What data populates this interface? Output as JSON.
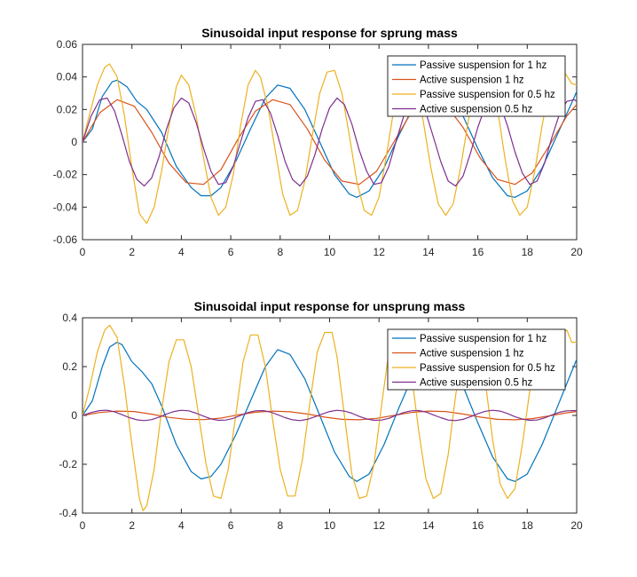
{
  "chart_data": [
    {
      "type": "line",
      "title": "Sinusoidal input response for sprung mass",
      "xlabel": "",
      "ylabel": "",
      "xlim": [
        0,
        20
      ],
      "ylim": [
        -0.06,
        0.06
      ],
      "xticks": [
        0,
        2,
        4,
        6,
        8,
        10,
        12,
        14,
        16,
        18,
        20
      ],
      "yticks": [
        -0.06,
        -0.04,
        -0.02,
        0,
        0.02,
        0.04,
        0.06
      ],
      "ytick_labels": [
        "-0.06",
        "-0.04",
        "-0.02",
        "0",
        "0.02",
        "0.04",
        "0.06"
      ],
      "grid": false,
      "legend_position": "top-right",
      "series": [
        {
          "name": "Passive suspension for 1 hz",
          "color": "#0072BD",
          "x": [
            0,
            0.4,
            0.8,
            1.2,
            1.4,
            1.8,
            2.2,
            2.6,
            3.2,
            3.8,
            4.4,
            4.8,
            5.2,
            5.6,
            6.2,
            6.8,
            7.4,
            7.9,
            8.4,
            9.0,
            9.6,
            10.2,
            10.8,
            11.1,
            11.6,
            12.2,
            12.8,
            13.4,
            14.0,
            14.3,
            14.8,
            15.4,
            16.0,
            16.6,
            17.2,
            17.5,
            18.0,
            18.6,
            19.2,
            19.8,
            20.0
          ],
          "y": [
            0,
            0.008,
            0.028,
            0.037,
            0.038,
            0.034,
            0.025,
            0.02,
            0.006,
            -0.015,
            -0.028,
            -0.033,
            -0.033,
            -0.028,
            -0.012,
            0.008,
            0.027,
            0.035,
            0.033,
            0.02,
            0.0,
            -0.02,
            -0.032,
            -0.034,
            -0.03,
            -0.016,
            0.004,
            0.022,
            0.033,
            0.034,
            0.03,
            0.016,
            -0.004,
            -0.022,
            -0.033,
            -0.034,
            -0.03,
            -0.016,
            0.004,
            0.024,
            0.031
          ]
        },
        {
          "name": "Active suspension 1 hz",
          "color": "#D95319",
          "x": [
            0,
            0.7,
            1.4,
            2.1,
            2.8,
            3.5,
            4.2,
            4.9,
            5.6,
            6.3,
            7.0,
            7.7,
            8.4,
            9.1,
            9.8,
            10.5,
            11.2,
            11.9,
            12.6,
            13.3,
            14.0,
            14.7,
            15.4,
            16.1,
            16.8,
            17.5,
            18.2,
            18.9,
            19.6,
            20.0
          ],
          "y": [
            0,
            0.018,
            0.026,
            0.022,
            0.006,
            -0.013,
            -0.025,
            -0.026,
            -0.017,
            0.002,
            0.019,
            0.026,
            0.023,
            0.008,
            -0.011,
            -0.024,
            -0.026,
            -0.018,
            0.0,
            0.018,
            0.026,
            0.023,
            0.009,
            -0.01,
            -0.023,
            -0.026,
            -0.019,
            -0.002,
            0.016,
            0.023
          ]
        },
        {
          "name": "Passive suspension for 0.5 hz",
          "color": "#EDB120",
          "x": [
            0,
            0.3,
            0.6,
            0.9,
            1.1,
            1.4,
            1.7,
            2.0,
            2.3,
            2.6,
            2.9,
            3.2,
            3.5,
            3.8,
            4.0,
            4.3,
            4.6,
            4.9,
            5.2,
            5.5,
            5.8,
            6.1,
            6.4,
            6.7,
            7.0,
            7.2,
            7.5,
            7.8,
            8.1,
            8.4,
            8.7,
            9.0,
            9.3,
            9.6,
            9.9,
            10.2,
            10.5,
            10.8,
            11.1,
            11.4,
            11.7,
            12.0,
            12.3,
            12.6,
            12.9,
            13.2,
            13.5,
            13.8,
            14.1,
            14.4,
            14.7,
            15.0,
            15.3,
            15.6,
            15.9,
            16.2,
            16.5,
            16.8,
            17.1,
            17.4,
            17.7,
            18.0,
            18.3,
            18.6,
            18.9,
            19.2,
            19.5,
            19.8,
            20.0
          ],
          "y": [
            0,
            0.018,
            0.035,
            0.046,
            0.048,
            0.04,
            0.016,
            -0.016,
            -0.044,
            -0.05,
            -0.04,
            -0.018,
            0.01,
            0.034,
            0.041,
            0.035,
            0.016,
            -0.01,
            -0.034,
            -0.045,
            -0.04,
            -0.02,
            0.01,
            0.035,
            0.044,
            0.04,
            0.022,
            -0.005,
            -0.032,
            -0.045,
            -0.042,
            -0.024,
            0.004,
            0.03,
            0.043,
            0.044,
            0.03,
            0.004,
            -0.024,
            -0.042,
            -0.045,
            -0.034,
            -0.008,
            0.02,
            0.04,
            0.046,
            0.036,
            0.012,
            -0.016,
            -0.038,
            -0.045,
            -0.038,
            -0.016,
            0.012,
            0.036,
            0.046,
            0.04,
            0.02,
            -0.01,
            -0.036,
            -0.045,
            -0.04,
            -0.018,
            0.01,
            0.034,
            0.045,
            0.043,
            0.036,
            0.035
          ]
        },
        {
          "name": "Active suspension 0.5 hz",
          "color": "#7E2F8E",
          "x": [
            0,
            0.35,
            0.7,
            1.0,
            1.3,
            1.6,
            1.9,
            2.2,
            2.5,
            2.8,
            3.1,
            3.4,
            3.7,
            4.0,
            4.3,
            4.6,
            4.9,
            5.2,
            5.5,
            5.8,
            6.1,
            6.4,
            6.7,
            7.0,
            7.3,
            7.6,
            7.9,
            8.2,
            8.5,
            8.8,
            9.1,
            9.4,
            9.7,
            10.0,
            10.3,
            10.6,
            10.9,
            11.2,
            11.5,
            11.8,
            12.1,
            12.4,
            12.7,
            13.0,
            13.3,
            13.6,
            13.9,
            14.2,
            14.5,
            14.8,
            15.1,
            15.4,
            15.7,
            16.0,
            16.3,
            16.6,
            16.9,
            17.2,
            17.5,
            17.8,
            18.1,
            18.4,
            18.7,
            19.0,
            19.3,
            19.6,
            19.9,
            20.0
          ],
          "y": [
            0,
            0.016,
            0.026,
            0.027,
            0.019,
            0.004,
            -0.012,
            -0.023,
            -0.027,
            -0.022,
            -0.009,
            0.008,
            0.021,
            0.027,
            0.024,
            0.012,
            -0.004,
            -0.018,
            -0.026,
            -0.025,
            -0.015,
            0.0,
            0.015,
            0.025,
            0.026,
            0.018,
            0.004,
            -0.012,
            -0.023,
            -0.027,
            -0.021,
            -0.008,
            0.008,
            0.021,
            0.027,
            0.023,
            0.011,
            -0.005,
            -0.018,
            -0.026,
            -0.025,
            -0.015,
            0.001,
            0.016,
            0.025,
            0.026,
            0.018,
            0.003,
            -0.012,
            -0.024,
            -0.027,
            -0.021,
            -0.007,
            0.009,
            0.022,
            0.027,
            0.023,
            0.01,
            -0.006,
            -0.019,
            -0.026,
            -0.024,
            -0.013,
            0.003,
            0.017,
            0.025,
            0.026,
            0.025
          ]
        }
      ]
    },
    {
      "type": "line",
      "title": "Sinusoidal input response for unsprung mass",
      "xlabel": "",
      "ylabel": "",
      "xlim": [
        0,
        20
      ],
      "ylim": [
        -0.4,
        0.4
      ],
      "xticks": [
        0,
        2,
        4,
        6,
        8,
        10,
        12,
        14,
        16,
        18,
        20
      ],
      "yticks": [
        -0.4,
        -0.2,
        0,
        0.2,
        0.4
      ],
      "ytick_labels": [
        "-0.4",
        "-0.2",
        "0",
        "0.2",
        "0.4"
      ],
      "grid": false,
      "legend_position": "top-right",
      "series": [
        {
          "name": "Passive suspension for 1 hz",
          "color": "#0072BD",
          "x": [
            0,
            0.4,
            0.8,
            1.1,
            1.4,
            1.6,
            2.0,
            2.4,
            2.8,
            3.2,
            3.8,
            4.4,
            4.8,
            5.2,
            5.6,
            6.2,
            6.8,
            7.4,
            7.9,
            8.4,
            9.0,
            9.6,
            10.2,
            10.8,
            11.1,
            11.6,
            12.2,
            12.8,
            13.4,
            14.0,
            14.3,
            14.8,
            15.4,
            16.0,
            16.6,
            17.2,
            17.5,
            18.0,
            18.6,
            19.2,
            19.8,
            20.0
          ],
          "y": [
            0,
            0.06,
            0.2,
            0.28,
            0.3,
            0.29,
            0.22,
            0.18,
            0.13,
            0.04,
            -0.12,
            -0.23,
            -0.26,
            -0.25,
            -0.2,
            -0.08,
            0.06,
            0.2,
            0.27,
            0.25,
            0.15,
            0.0,
            -0.15,
            -0.25,
            -0.27,
            -0.24,
            -0.12,
            0.03,
            0.17,
            0.26,
            0.27,
            0.24,
            0.12,
            -0.03,
            -0.17,
            -0.26,
            -0.27,
            -0.24,
            -0.12,
            0.03,
            0.18,
            0.23
          ]
        },
        {
          "name": "Active suspension 1 hz",
          "color": "#D95319",
          "x": [
            0,
            0.7,
            1.4,
            2.1,
            2.8,
            3.5,
            4.2,
            4.9,
            5.6,
            6.3,
            7.0,
            7.7,
            8.4,
            9.1,
            9.8,
            10.5,
            11.2,
            11.9,
            12.6,
            13.3,
            14.0,
            14.7,
            15.4,
            16.1,
            16.8,
            17.5,
            18.2,
            18.9,
            19.6,
            20.0
          ],
          "y": [
            0,
            0.012,
            0.018,
            0.016,
            0.005,
            -0.008,
            -0.016,
            -0.017,
            -0.011,
            0.002,
            0.013,
            0.018,
            0.015,
            0.006,
            -0.007,
            -0.016,
            -0.018,
            -0.012,
            0.0,
            0.012,
            0.018,
            0.016,
            0.006,
            -0.007,
            -0.016,
            -0.018,
            -0.013,
            -0.002,
            0.011,
            0.016
          ]
        },
        {
          "name": "Passive suspension for 0.5 hz",
          "color": "#EDB120",
          "x": [
            0,
            0.3,
            0.6,
            0.9,
            1.1,
            1.4,
            1.7,
            2.0,
            2.3,
            2.45,
            2.6,
            2.9,
            3.2,
            3.5,
            3.8,
            4.1,
            4.4,
            4.7,
            5.0,
            5.3,
            5.6,
            5.9,
            6.2,
            6.5,
            6.8,
            7.1,
            7.4,
            7.7,
            8.0,
            8.3,
            8.6,
            8.9,
            9.2,
            9.5,
            9.8,
            10.1,
            10.3,
            10.6,
            10.9,
            11.2,
            11.5,
            11.8,
            12.1,
            12.4,
            12.7,
            13.0,
            13.3,
            13.6,
            13.9,
            14.2,
            14.5,
            14.8,
            15.1,
            15.4,
            15.7,
            16.0,
            16.3,
            16.6,
            16.9,
            17.2,
            17.5,
            17.8,
            18.1,
            18.4,
            18.7,
            19.0,
            19.3,
            19.6,
            19.8,
            20.0
          ],
          "y": [
            0,
            0.12,
            0.26,
            0.35,
            0.37,
            0.32,
            0.12,
            -0.12,
            -0.34,
            -0.39,
            -0.37,
            -0.22,
            0.02,
            0.22,
            0.31,
            0.31,
            0.2,
            0.0,
            -0.2,
            -0.33,
            -0.34,
            -0.22,
            0.0,
            0.22,
            0.33,
            0.33,
            0.2,
            -0.02,
            -0.22,
            -0.33,
            -0.33,
            -0.18,
            0.05,
            0.26,
            0.34,
            0.34,
            0.24,
            0.0,
            -0.24,
            -0.34,
            -0.33,
            -0.2,
            0.04,
            0.26,
            0.35,
            0.33,
            0.18,
            -0.06,
            -0.26,
            -0.34,
            -0.32,
            -0.16,
            0.08,
            0.27,
            0.34,
            0.31,
            0.14,
            -0.1,
            -0.28,
            -0.34,
            -0.3,
            -0.12,
            0.1,
            0.28,
            0.34,
            0.34,
            0.33,
            0.35,
            0.3,
            0.3
          ]
        },
        {
          "name": "Active suspension 0.5 hz",
          "color": "#7E2F8E",
          "x": [
            0,
            0.35,
            0.7,
            1.0,
            1.3,
            1.6,
            1.9,
            2.2,
            2.5,
            2.8,
            3.1,
            3.4,
            3.7,
            4.0,
            4.3,
            4.6,
            4.9,
            5.2,
            5.5,
            5.8,
            6.1,
            6.4,
            6.7,
            7.0,
            7.3,
            7.6,
            7.9,
            8.2,
            8.5,
            8.8,
            9.1,
            9.4,
            9.7,
            10.0,
            10.3,
            10.6,
            10.9,
            11.2,
            11.5,
            11.8,
            12.1,
            12.4,
            12.7,
            13.0,
            13.3,
            13.6,
            13.9,
            14.2,
            14.5,
            14.8,
            15.1,
            15.4,
            15.7,
            16.0,
            16.3,
            16.6,
            16.9,
            17.2,
            17.5,
            17.8,
            18.1,
            18.4,
            18.7,
            19.0,
            19.3,
            19.6,
            19.9,
            20.0
          ],
          "y": [
            0,
            0.012,
            0.02,
            0.021,
            0.015,
            0.003,
            -0.009,
            -0.018,
            -0.021,
            -0.017,
            -0.007,
            0.006,
            0.016,
            0.021,
            0.019,
            0.009,
            -0.003,
            -0.014,
            -0.02,
            -0.019,
            -0.012,
            0.0,
            0.012,
            0.019,
            0.02,
            0.014,
            0.003,
            -0.009,
            -0.018,
            -0.021,
            -0.016,
            -0.006,
            0.006,
            0.016,
            0.021,
            0.018,
            0.009,
            -0.004,
            -0.014,
            -0.02,
            -0.019,
            -0.012,
            0.001,
            0.012,
            0.019,
            0.02,
            0.014,
            0.002,
            -0.009,
            -0.019,
            -0.021,
            -0.016,
            -0.005,
            0.007,
            0.017,
            0.021,
            0.018,
            0.008,
            -0.005,
            -0.015,
            -0.02,
            -0.019,
            -0.01,
            0.002,
            0.013,
            0.019,
            0.02,
            0.019
          ]
        }
      ]
    }
  ]
}
